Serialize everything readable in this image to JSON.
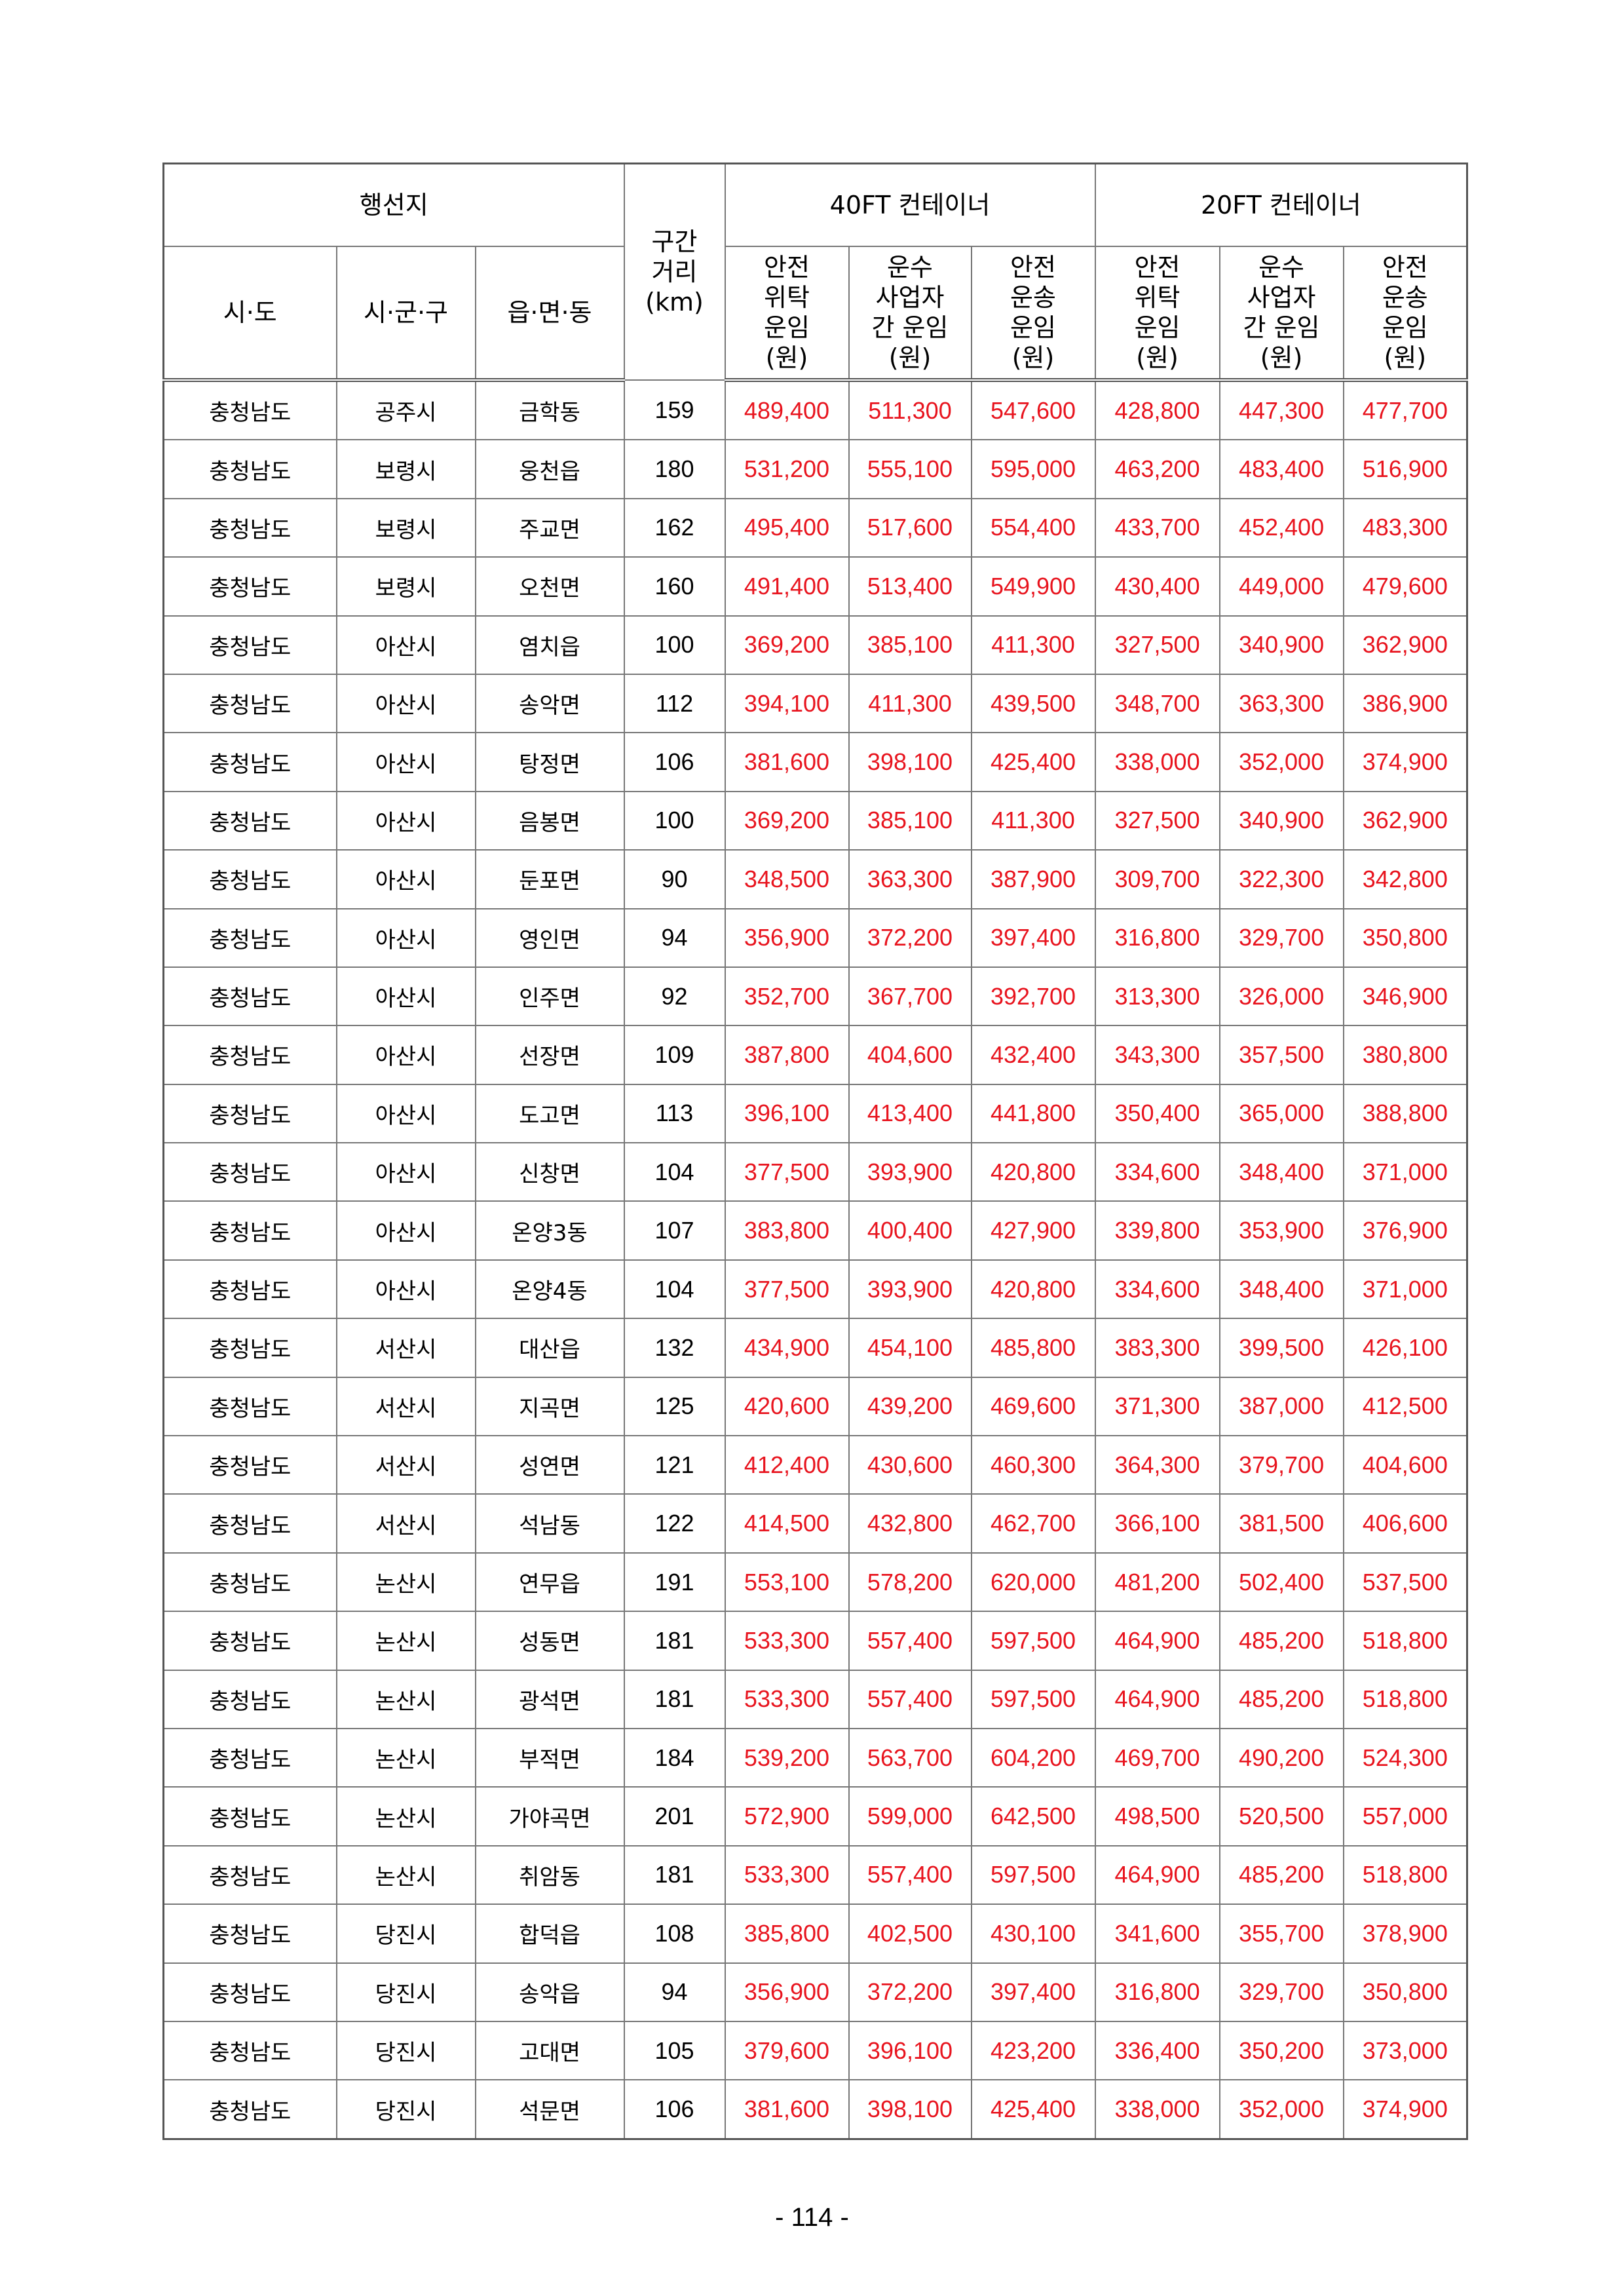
{
  "header": {
    "group_destination": "행선지",
    "distance": "구간\n거리\n(km)",
    "group_40ft": "40FT 컨테이너",
    "group_20ft": "20FT 컨테이너",
    "sido": "시·도",
    "sigungu": "시·군·구",
    "eupmyeondong": "읍·면·동",
    "rate_cols": [
      "안전\n위탁\n운임\n(원)",
      "운수\n사업자\n간 운임\n(원)",
      "안전\n운송\n운임\n(원)",
      "안전\n위탁\n운임\n(원)",
      "운수\n사업자\n간 운임\n(원)",
      "안전\n운송\n운임\n(원)"
    ]
  },
  "colors": {
    "rate_text": "#e8141e"
  },
  "rows": [
    [
      "충청남도",
      "공주시",
      "금학동",
      "159",
      "489,400",
      "511,300",
      "547,600",
      "428,800",
      "447,300",
      "477,700"
    ],
    [
      "충청남도",
      "보령시",
      "웅천읍",
      "180",
      "531,200",
      "555,100",
      "595,000",
      "463,200",
      "483,400",
      "516,900"
    ],
    [
      "충청남도",
      "보령시",
      "주교면",
      "162",
      "495,400",
      "517,600",
      "554,400",
      "433,700",
      "452,400",
      "483,300"
    ],
    [
      "충청남도",
      "보령시",
      "오천면",
      "160",
      "491,400",
      "513,400",
      "549,900",
      "430,400",
      "449,000",
      "479,600"
    ],
    [
      "충청남도",
      "아산시",
      "염치읍",
      "100",
      "369,200",
      "385,100",
      "411,300",
      "327,500",
      "340,900",
      "362,900"
    ],
    [
      "충청남도",
      "아산시",
      "송악면",
      "112",
      "394,100",
      "411,300",
      "439,500",
      "348,700",
      "363,300",
      "386,900"
    ],
    [
      "충청남도",
      "아산시",
      "탕정면",
      "106",
      "381,600",
      "398,100",
      "425,400",
      "338,000",
      "352,000",
      "374,900"
    ],
    [
      "충청남도",
      "아산시",
      "음봉면",
      "100",
      "369,200",
      "385,100",
      "411,300",
      "327,500",
      "340,900",
      "362,900"
    ],
    [
      "충청남도",
      "아산시",
      "둔포면",
      "90",
      "348,500",
      "363,300",
      "387,900",
      "309,700",
      "322,300",
      "342,800"
    ],
    [
      "충청남도",
      "아산시",
      "영인면",
      "94",
      "356,900",
      "372,200",
      "397,400",
      "316,800",
      "329,700",
      "350,800"
    ],
    [
      "충청남도",
      "아산시",
      "인주면",
      "92",
      "352,700",
      "367,700",
      "392,700",
      "313,300",
      "326,000",
      "346,900"
    ],
    [
      "충청남도",
      "아산시",
      "선장면",
      "109",
      "387,800",
      "404,600",
      "432,400",
      "343,300",
      "357,500",
      "380,800"
    ],
    [
      "충청남도",
      "아산시",
      "도고면",
      "113",
      "396,100",
      "413,400",
      "441,800",
      "350,400",
      "365,000",
      "388,800"
    ],
    [
      "충청남도",
      "아산시",
      "신창면",
      "104",
      "377,500",
      "393,900",
      "420,800",
      "334,600",
      "348,400",
      "371,000"
    ],
    [
      "충청남도",
      "아산시",
      "온양3동",
      "107",
      "383,800",
      "400,400",
      "427,900",
      "339,800",
      "353,900",
      "376,900"
    ],
    [
      "충청남도",
      "아산시",
      "온양4동",
      "104",
      "377,500",
      "393,900",
      "420,800",
      "334,600",
      "348,400",
      "371,000"
    ],
    [
      "충청남도",
      "서산시",
      "대산읍",
      "132",
      "434,900",
      "454,100",
      "485,800",
      "383,300",
      "399,500",
      "426,100"
    ],
    [
      "충청남도",
      "서산시",
      "지곡면",
      "125",
      "420,600",
      "439,200",
      "469,600",
      "371,300",
      "387,000",
      "412,500"
    ],
    [
      "충청남도",
      "서산시",
      "성연면",
      "121",
      "412,400",
      "430,600",
      "460,300",
      "364,300",
      "379,700",
      "404,600"
    ],
    [
      "충청남도",
      "서산시",
      "석남동",
      "122",
      "414,500",
      "432,800",
      "462,700",
      "366,100",
      "381,500",
      "406,600"
    ],
    [
      "충청남도",
      "논산시",
      "연무읍",
      "191",
      "553,100",
      "578,200",
      "620,000",
      "481,200",
      "502,400",
      "537,500"
    ],
    [
      "충청남도",
      "논산시",
      "성동면",
      "181",
      "533,300",
      "557,400",
      "597,500",
      "464,900",
      "485,200",
      "518,800"
    ],
    [
      "충청남도",
      "논산시",
      "광석면",
      "181",
      "533,300",
      "557,400",
      "597,500",
      "464,900",
      "485,200",
      "518,800"
    ],
    [
      "충청남도",
      "논산시",
      "부적면",
      "184",
      "539,200",
      "563,700",
      "604,200",
      "469,700",
      "490,200",
      "524,300"
    ],
    [
      "충청남도",
      "논산시",
      "가야곡면",
      "201",
      "572,900",
      "599,000",
      "642,500",
      "498,500",
      "520,500",
      "557,000"
    ],
    [
      "충청남도",
      "논산시",
      "취암동",
      "181",
      "533,300",
      "557,400",
      "597,500",
      "464,900",
      "485,200",
      "518,800"
    ],
    [
      "충청남도",
      "당진시",
      "합덕읍",
      "108",
      "385,800",
      "402,500",
      "430,100",
      "341,600",
      "355,700",
      "378,900"
    ],
    [
      "충청남도",
      "당진시",
      "송악읍",
      "94",
      "356,900",
      "372,200",
      "397,400",
      "316,800",
      "329,700",
      "350,800"
    ],
    [
      "충청남도",
      "당진시",
      "고대면",
      "105",
      "379,600",
      "396,100",
      "423,200",
      "336,400",
      "350,200",
      "373,000"
    ],
    [
      "충청남도",
      "당진시",
      "석문면",
      "106",
      "381,600",
      "398,100",
      "425,400",
      "338,000",
      "352,000",
      "374,900"
    ]
  ],
  "page_number": "- 114 -"
}
